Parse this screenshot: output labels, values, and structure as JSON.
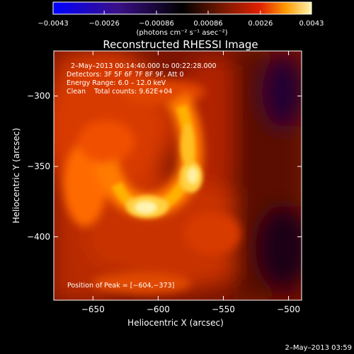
{
  "chart_data": {
    "type": "heatmap",
    "title": "Reconstructed RHESSI Image",
    "xlabel": "Heliocentric X (arcsec)",
    "ylabel": "Heliocentric Y (arcsec)",
    "xlim": [
      -680,
      -490
    ],
    "ylim": [
      -445,
      -268
    ],
    "x_ticks": [
      -650,
      -600,
      -550,
      -500
    ],
    "y_ticks": [
      -300,
      -350,
      -400
    ],
    "x_tick_labels": [
      "−650",
      "−600",
      "−550",
      "−500"
    ],
    "y_tick_labels": [
      "−300",
      "−350",
      "−400"
    ],
    "colorbar": {
      "range": [
        -0.0043,
        0.0043
      ],
      "ticks": [
        -0.0043,
        -0.0026,
        -0.00086,
        0.00086,
        0.0026,
        0.0043
      ],
      "tick_labels": [
        "−0.0043",
        "−0.0026",
        "−0.00086",
        "0.00086",
        "0.0026",
        "0.0043"
      ],
      "unit_label": "(photons cm⁻² s⁻¹ asec⁻²)",
      "colors": [
        "#0000ff",
        "#3a1088",
        "#000000",
        "#7a1a00",
        "#e02000",
        "#ff9a00",
        "#fff5b0"
      ]
    },
    "annotations": [
      "2–May–2013 00:14:40.000 to 00:22:28.000",
      "Detectors: 3F 5F 6F 7F 8F 9F, Att 0",
      "Energy Range: 6.0 – 12.0 keV",
      "Clean    Total counts: 9.62E+04"
    ],
    "peak_label": "Position of Peak = [−604,−373]",
    "peak": [
      -604,
      -373
    ],
    "footer": "2–May–2013 03:59"
  }
}
